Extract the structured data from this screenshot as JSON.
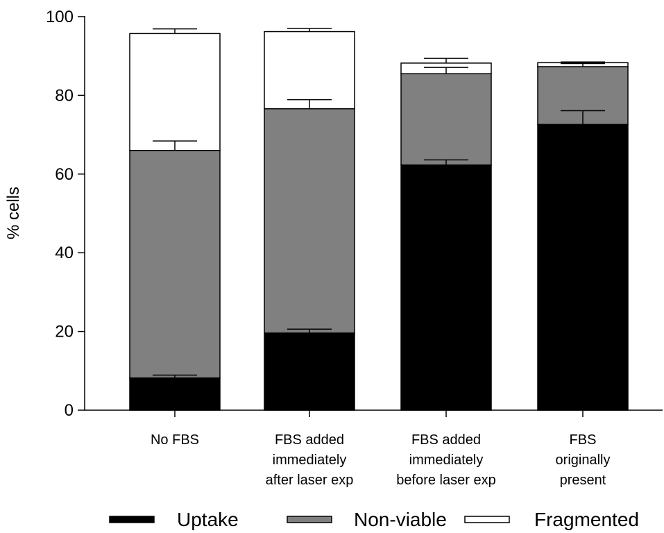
{
  "chart_data": {
    "type": "bar",
    "stacked": true,
    "categories": [
      [
        "No FBS"
      ],
      [
        "FBS added",
        "immediately",
        "after laser exp"
      ],
      [
        "FBS added",
        "immediately",
        "before laser exp"
      ],
      [
        "FBS",
        "originally",
        "present"
      ]
    ],
    "series": [
      {
        "name": "Uptake",
        "color": "#000000",
        "values": [
          8.2,
          19.6,
          62.3,
          72.6
        ],
        "errors": [
          0.7,
          1.0,
          1.3,
          3.5
        ]
      },
      {
        "name": "Non-viable",
        "color": "#808080",
        "values": [
          57.8,
          57.0,
          23.2,
          14.7
        ],
        "errors": [
          2.4,
          2.3,
          1.6,
          0.8
        ]
      },
      {
        "name": "Fragmented",
        "color": "#ffffff",
        "values": [
          29.7,
          19.6,
          2.7,
          1.0
        ],
        "errors": [
          1.2,
          0.8,
          1.2,
          0.2
        ]
      }
    ],
    "title": "",
    "xlabel": "",
    "ylabel": "% cells",
    "ylim": [
      0,
      100
    ],
    "yticks": [
      0,
      20,
      40,
      60,
      80,
      100
    ],
    "grid": false,
    "legend": "bottom"
  }
}
